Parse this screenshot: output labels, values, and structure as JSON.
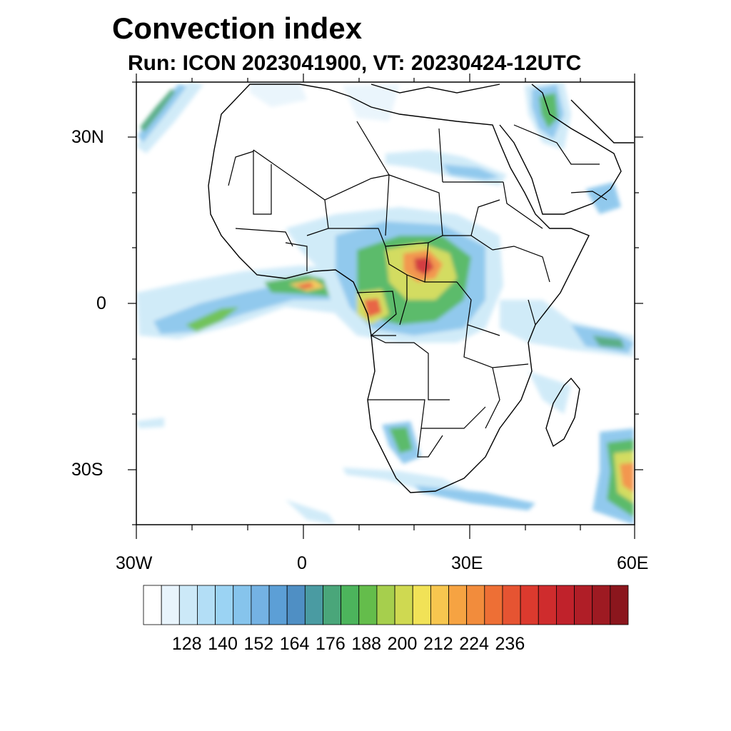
{
  "title": "Convection index",
  "subtitle": "Run: ICON 2023041900,  VT: 20230424-12UTC",
  "lat_labels": [
    "30N",
    "0",
    "30S"
  ],
  "lon_labels": [
    "30W",
    "0",
    "30E",
    "60E"
  ],
  "colorbar": {
    "labels": [
      "128",
      "140",
      "152",
      "164",
      "176",
      "188",
      "200",
      "212",
      "224",
      "236"
    ],
    "colors": [
      "#ffffff",
      "#e8f4fc",
      "#cce9f8",
      "#b3def6",
      "#9bd3f3",
      "#86c4ec",
      "#74b2e3",
      "#5c9fd6",
      "#4f8fc4",
      "#4a9ba2",
      "#4aa67a",
      "#4cb45c",
      "#64bd4b",
      "#a6cf4d",
      "#cfd951",
      "#f1e257",
      "#f7c64f",
      "#f6a342",
      "#f28c3c",
      "#ee6f35",
      "#e65432",
      "#dc3a2e",
      "#cf2c2d",
      "#c0222b",
      "#b01e27",
      "#9e1a22",
      "#8b161d"
    ]
  },
  "map": {
    "lon_range": [
      -30,
      60
    ],
    "lat_range": [
      -40,
      40
    ],
    "lat_ticks": [
      30,
      0,
      -30
    ],
    "lon_ticks": [
      -30,
      0,
      30,
      60
    ]
  }
}
